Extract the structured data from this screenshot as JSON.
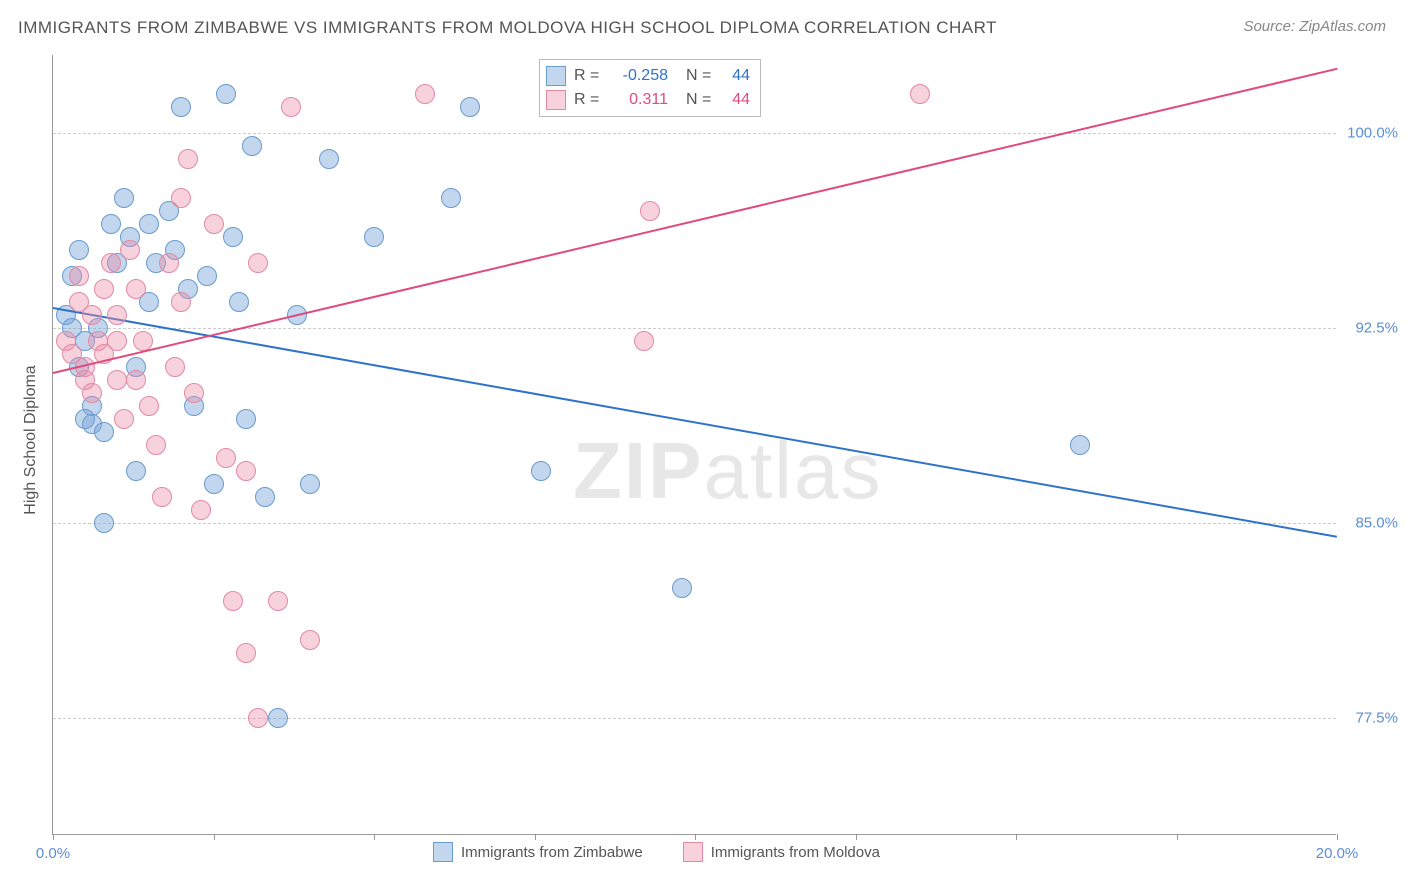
{
  "title": "IMMIGRANTS FROM ZIMBABWE VS IMMIGRANTS FROM MOLDOVA HIGH SCHOOL DIPLOMA CORRELATION CHART",
  "source": "Source: ZipAtlas.com",
  "ylabel": "High School Diploma",
  "watermark_a": "ZIP",
  "watermark_b": "atlas",
  "chart": {
    "type": "scatter",
    "background": "#ffffff",
    "grid_color": "#cccccc",
    "axis_color": "#999999",
    "xlim": [
      0,
      20
    ],
    "ylim": [
      73,
      103
    ],
    "xticks": [
      0,
      2.5,
      5,
      7.5,
      10,
      12.5,
      15,
      17.5,
      20
    ],
    "xtick_labels": {
      "0": "0.0%",
      "20": "20.0%"
    },
    "yticks": [
      77.5,
      85.0,
      92.5,
      100.0
    ],
    "ytick_labels": [
      "77.5%",
      "85.0%",
      "92.5%",
      "100.0%"
    ],
    "label_color": "#5a8fd6",
    "series": [
      {
        "name": "Immigrants from Zimbabwe",
        "color_fill": "rgba(120,165,216,0.45)",
        "color_stroke": "#6a9bd1",
        "marker_size": 20,
        "r_value": "-0.258",
        "n_value": "44",
        "trend": {
          "x0": 0,
          "y0": 93.3,
          "x1": 20,
          "y1": 84.5,
          "color": "#2f72c9"
        },
        "points": [
          [
            0.2,
            93.0
          ],
          [
            0.3,
            92.5
          ],
          [
            0.4,
            91.0
          ],
          [
            0.3,
            94.5
          ],
          [
            0.5,
            92.0
          ],
          [
            0.4,
            95.5
          ],
          [
            0.6,
            89.5
          ],
          [
            0.6,
            88.8
          ],
          [
            0.8,
            88.5
          ],
          [
            0.7,
            92.5
          ],
          [
            0.9,
            96.5
          ],
          [
            1.0,
            95.0
          ],
          [
            1.1,
            97.5
          ],
          [
            1.2,
            96.0
          ],
          [
            1.3,
            91.0
          ],
          [
            1.3,
            87.0
          ],
          [
            1.5,
            96.5
          ],
          [
            1.6,
            95.0
          ],
          [
            1.5,
            93.5
          ],
          [
            1.8,
            97.0
          ],
          [
            1.9,
            95.5
          ],
          [
            2.0,
            101.0
          ],
          [
            2.1,
            94.0
          ],
          [
            2.2,
            89.5
          ],
          [
            2.4,
            94.5
          ],
          [
            2.5,
            86.5
          ],
          [
            2.7,
            101.5
          ],
          [
            2.8,
            96.0
          ],
          [
            2.9,
            93.5
          ],
          [
            3.1,
            99.5
          ],
          [
            3.3,
            86.0
          ],
          [
            3.5,
            77.5
          ],
          [
            3.8,
            93.0
          ],
          [
            3.0,
            89.0
          ],
          [
            4.0,
            86.5
          ],
          [
            4.3,
            99.0
          ],
          [
            5.0,
            96.0
          ],
          [
            6.2,
            97.5
          ],
          [
            7.6,
            87.0
          ],
          [
            6.5,
            101.0
          ],
          [
            9.8,
            82.5
          ],
          [
            16.0,
            88.0
          ],
          [
            0.8,
            85.0
          ],
          [
            0.5,
            89.0
          ]
        ]
      },
      {
        "name": "Immigrants from Moldova",
        "color_fill": "rgba(235,140,165,0.40)",
        "color_stroke": "#e28aa5",
        "marker_size": 20,
        "r_value": "0.311",
        "n_value": "44",
        "trend": {
          "x0": 0,
          "y0": 90.8,
          "x1": 20,
          "y1": 102.5,
          "color": "#e04a7e"
        },
        "points": [
          [
            0.2,
            92.0
          ],
          [
            0.3,
            91.5
          ],
          [
            0.4,
            93.5
          ],
          [
            0.5,
            91.0
          ],
          [
            0.6,
            90.0
          ],
          [
            0.4,
            94.5
          ],
          [
            0.7,
            92.0
          ],
          [
            0.8,
            94.0
          ],
          [
            0.9,
            95.0
          ],
          [
            1.0,
            93.0
          ],
          [
            1.0,
            90.5
          ],
          [
            1.1,
            89.0
          ],
          [
            1.2,
            95.5
          ],
          [
            1.3,
            94.0
          ],
          [
            1.4,
            92.0
          ],
          [
            1.5,
            89.5
          ],
          [
            1.6,
            88.0
          ],
          [
            1.7,
            86.0
          ],
          [
            1.8,
            95.0
          ],
          [
            1.9,
            91.0
          ],
          [
            2.0,
            97.5
          ],
          [
            2.2,
            90.0
          ],
          [
            2.3,
            85.5
          ],
          [
            2.5,
            96.5
          ],
          [
            2.7,
            87.5
          ],
          [
            2.8,
            82.0
          ],
          [
            3.0,
            87.0
          ],
          [
            3.0,
            80.0
          ],
          [
            3.2,
            95.0
          ],
          [
            3.2,
            77.5
          ],
          [
            3.5,
            82.0
          ],
          [
            3.7,
            101.0
          ],
          [
            4.0,
            80.5
          ],
          [
            2.0,
            93.5
          ],
          [
            2.1,
            99.0
          ],
          [
            5.8,
            101.5
          ],
          [
            9.3,
            97.0
          ],
          [
            9.2,
            92.0
          ],
          [
            13.5,
            101.5
          ],
          [
            1.0,
            92.0
          ],
          [
            0.5,
            90.5
          ],
          [
            0.6,
            93.0
          ],
          [
            0.8,
            91.5
          ],
          [
            1.3,
            90.5
          ]
        ]
      }
    ]
  },
  "legend": {
    "series1_label": "Immigrants from Zimbabwe",
    "series2_label": "Immigrants from Moldova"
  }
}
